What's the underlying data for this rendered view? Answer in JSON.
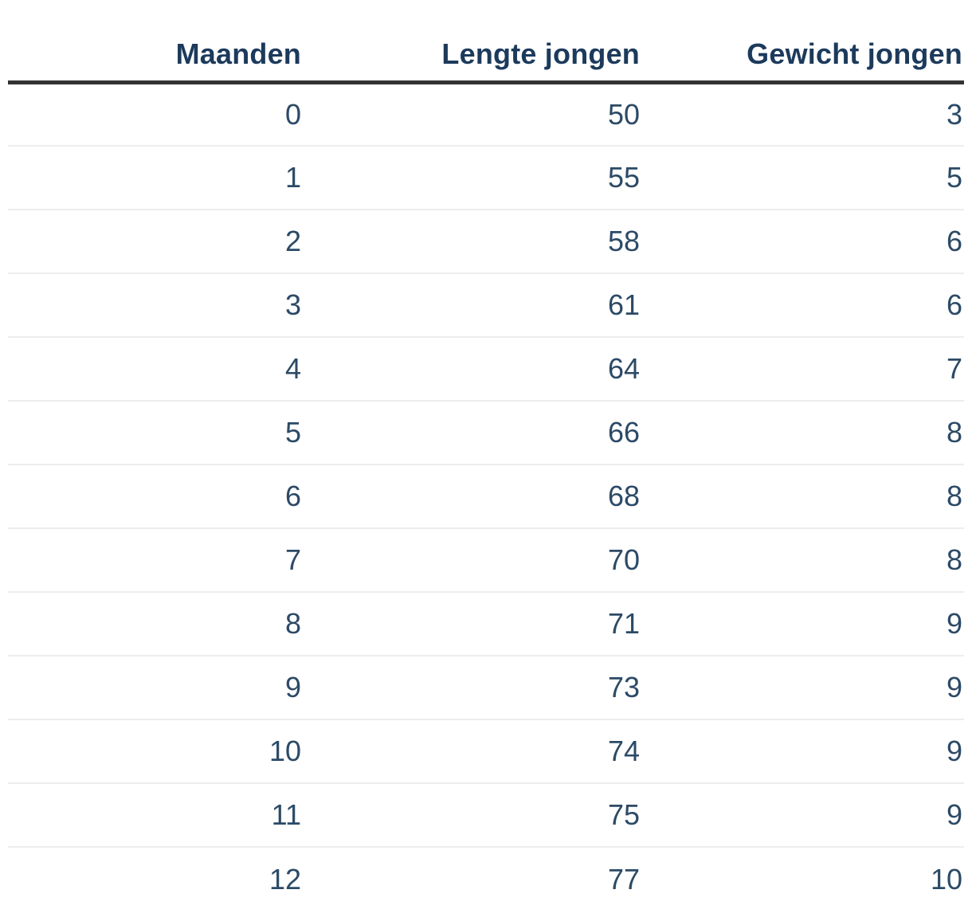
{
  "chart_data": {
    "type": "table",
    "columns": [
      "Maanden",
      "Lengte jongen",
      "Gewicht jongen"
    ],
    "rows": [
      [
        0,
        50,
        3
      ],
      [
        1,
        55,
        5
      ],
      [
        2,
        58,
        6
      ],
      [
        3,
        61,
        6
      ],
      [
        4,
        64,
        7
      ],
      [
        5,
        66,
        8
      ],
      [
        6,
        68,
        8
      ],
      [
        7,
        70,
        8
      ],
      [
        8,
        71,
        9
      ],
      [
        9,
        73,
        9
      ],
      [
        10,
        74,
        9
      ],
      [
        11,
        75,
        9
      ],
      [
        12,
        77,
        10
      ]
    ]
  },
  "colors": {
    "header_text": "#1c3a5c",
    "cell_text": "#2c4a66",
    "header_rule": "#333333",
    "row_separator": "#ededed",
    "background": "#ffffff"
  }
}
